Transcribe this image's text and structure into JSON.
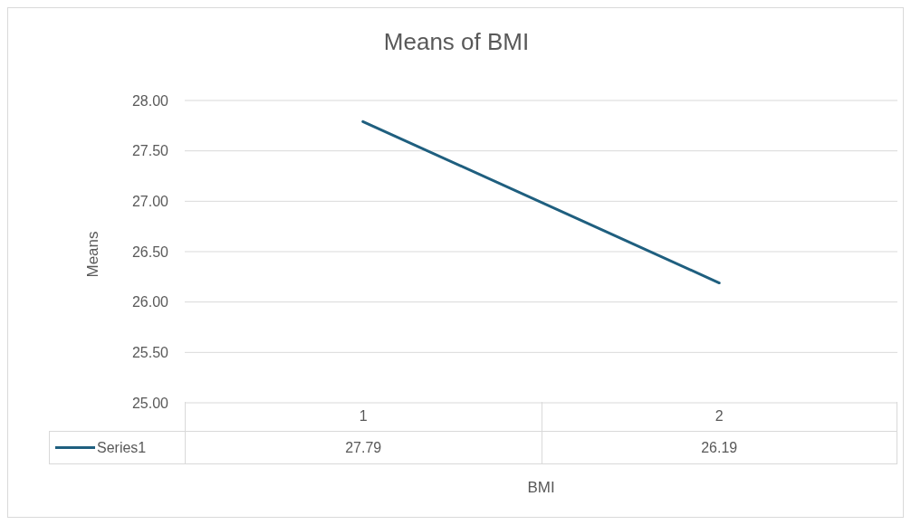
{
  "chart_data": {
    "type": "line",
    "title": "Means of BMI",
    "xlabel": "BMI",
    "ylabel": "Means",
    "categories": [
      "1",
      "2"
    ],
    "series": [
      {
        "name": "Series1",
        "color": "#1f5f7f",
        "values": [
          27.79,
          26.19
        ]
      }
    ],
    "ylim": [
      25,
      28
    ],
    "yticks": [
      {
        "value": 25,
        "label": "25.00"
      },
      {
        "value": 25.5,
        "label": "25.50"
      },
      {
        "value": 26,
        "label": "26.00"
      },
      {
        "value": 26.5,
        "label": "26.50"
      },
      {
        "value": 27,
        "label": "27.00"
      },
      {
        "value": 27.5,
        "label": "27.50"
      },
      {
        "value": 28,
        "label": "28.00"
      }
    ],
    "grid": "y",
    "legend": "bottom",
    "data_labels": true,
    "marker": "none",
    "line_style": "solid"
  }
}
